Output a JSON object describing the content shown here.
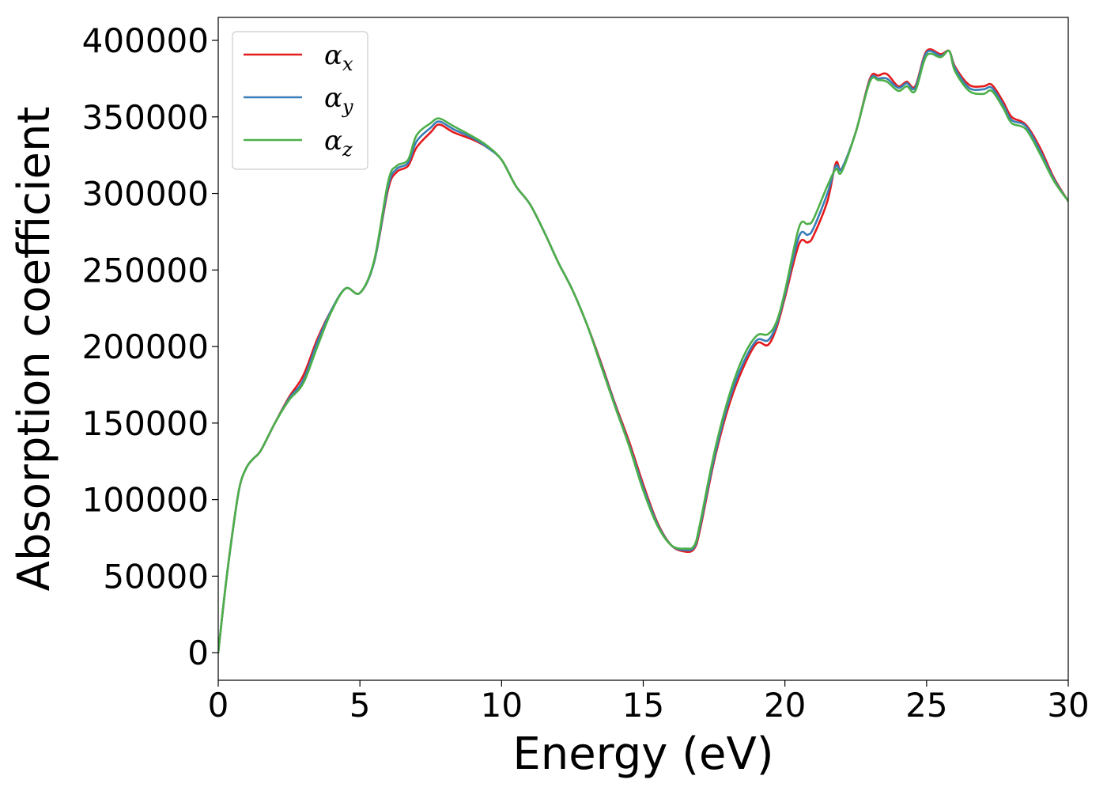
{
  "chart_data": {
    "type": "line",
    "xlabel": "Energy (eV)",
    "ylabel": "Absorption coefficient",
    "xlim": [
      0,
      30
    ],
    "ylim": [
      -18000,
      415000
    ],
    "xticks": [
      0,
      5,
      10,
      15,
      20,
      25,
      30
    ],
    "yticks": [
      0,
      50000,
      100000,
      150000,
      200000,
      250000,
      300000,
      350000,
      400000
    ],
    "grid": false,
    "legend_position": "top-left",
    "series": [
      {
        "name": "α_x",
        "label_base": "α",
        "label_sub": "x",
        "color": "#e41a1c",
        "x": [
          0,
          0.25,
          0.5,
          0.75,
          1.0,
          1.25,
          1.5,
          2.0,
          2.5,
          3.0,
          3.5,
          4.0,
          4.5,
          5.0,
          5.5,
          6.0,
          6.3,
          6.7,
          7.0,
          7.5,
          7.8,
          8.3,
          9.0,
          9.5,
          10.0,
          10.5,
          11.0,
          11.5,
          12.0,
          12.5,
          13.0,
          13.5,
          14.0,
          14.5,
          15.0,
          15.5,
          16.0,
          16.5,
          16.8,
          17.0,
          17.5,
          18.0,
          18.5,
          19.0,
          19.4,
          19.7,
          20.0,
          20.5,
          20.8,
          21.0,
          21.5,
          21.8,
          22.0,
          22.5,
          23.0,
          23.3,
          23.6,
          24.0,
          24.3,
          24.6,
          25.0,
          25.5,
          25.8,
          26.0,
          26.5,
          27.0,
          27.3,
          27.7,
          28.0,
          28.5,
          29.0,
          29.5,
          30.0
        ],
        "y": [
          0,
          42000,
          78000,
          108000,
          121000,
          127000,
          132000,
          150000,
          167000,
          181000,
          205000,
          224000,
          238000,
          235000,
          255000,
          303000,
          314000,
          318000,
          330000,
          340000,
          345000,
          340000,
          335000,
          330000,
          322000,
          305000,
          293000,
          275000,
          255000,
          237000,
          215000,
          190000,
          163000,
          138000,
          110000,
          85000,
          70000,
          66000,
          68000,
          80000,
          125000,
          160000,
          185000,
          202000,
          201000,
          212000,
          232000,
          267000,
          268000,
          272000,
          295000,
          320000,
          316000,
          340000,
          375000,
          377000,
          378000,
          370000,
          373000,
          370000,
          393000,
          391000,
          393000,
          383000,
          371000,
          370000,
          371000,
          360000,
          350000,
          345000,
          330000,
          310000,
          295000
        ]
      },
      {
        "name": "α_y",
        "label_base": "α",
        "label_sub": "y",
        "color": "#377eb8",
        "x": [
          0,
          0.25,
          0.5,
          0.75,
          1.0,
          1.25,
          1.5,
          2.0,
          2.5,
          3.0,
          3.5,
          4.0,
          4.5,
          5.0,
          5.5,
          6.0,
          6.3,
          6.7,
          7.0,
          7.5,
          7.8,
          8.3,
          9.0,
          9.5,
          10.0,
          10.5,
          11.0,
          11.5,
          12.0,
          12.5,
          13.0,
          13.5,
          14.0,
          14.5,
          15.0,
          15.5,
          16.0,
          16.5,
          16.8,
          17.0,
          17.5,
          18.0,
          18.5,
          19.0,
          19.4,
          19.7,
          20.0,
          20.5,
          20.8,
          21.0,
          21.5,
          21.8,
          22.0,
          22.5,
          23.0,
          23.3,
          23.6,
          24.0,
          24.3,
          24.6,
          25.0,
          25.5,
          25.8,
          26.0,
          26.5,
          27.0,
          27.3,
          27.7,
          28.0,
          28.5,
          29.0,
          29.5,
          30.0
        ],
        "y": [
          0,
          42000,
          78000,
          108000,
          121000,
          127000,
          132000,
          150000,
          166000,
          178000,
          203000,
          224000,
          238000,
          235000,
          255000,
          305000,
          316000,
          320000,
          334000,
          343000,
          347000,
          342000,
          336000,
          330000,
          322000,
          305000,
          293000,
          275000,
          255000,
          237000,
          215000,
          189000,
          162000,
          136000,
          108000,
          84000,
          70000,
          67000,
          69000,
          82000,
          127000,
          163000,
          188000,
          204000,
          204000,
          214000,
          234000,
          272000,
          273000,
          277000,
          300000,
          318000,
          316000,
          340000,
          374000,
          375000,
          375000,
          369000,
          372000,
          369000,
          392000,
          390000,
          393000,
          382000,
          369000,
          368000,
          369000,
          358000,
          348000,
          344000,
          328000,
          309000,
          295000
        ]
      },
      {
        "name": "α_z",
        "label_base": "α",
        "label_sub": "z",
        "color": "#4daf4a",
        "x": [
          0,
          0.25,
          0.5,
          0.75,
          1.0,
          1.25,
          1.5,
          2.0,
          2.5,
          3.0,
          3.5,
          4.0,
          4.5,
          5.0,
          5.5,
          6.0,
          6.3,
          6.7,
          7.0,
          7.5,
          7.8,
          8.3,
          9.0,
          9.5,
          10.0,
          10.5,
          11.0,
          11.5,
          12.0,
          12.5,
          13.0,
          13.5,
          14.0,
          14.5,
          15.0,
          15.5,
          16.0,
          16.5,
          16.8,
          17.0,
          17.5,
          18.0,
          18.5,
          19.0,
          19.4,
          19.7,
          20.0,
          20.5,
          20.8,
          21.0,
          21.5,
          21.8,
          22.0,
          22.5,
          23.0,
          23.3,
          23.6,
          24.0,
          24.3,
          24.6,
          25.0,
          25.5,
          25.8,
          26.0,
          26.5,
          27.0,
          27.3,
          27.7,
          28.0,
          28.5,
          29.0,
          29.5,
          30.0
        ],
        "y": [
          0,
          42000,
          78000,
          108000,
          121000,
          127000,
          132000,
          150000,
          165000,
          176000,
          200000,
          223000,
          238000,
          235000,
          256000,
          308000,
          318000,
          322000,
          338000,
          346000,
          349000,
          344000,
          337000,
          331000,
          322000,
          305000,
          293000,
          275000,
          255000,
          237000,
          215000,
          188000,
          161000,
          135000,
          106000,
          83000,
          70000,
          68000,
          70000,
          84000,
          130000,
          166000,
          192000,
          207000,
          208000,
          216000,
          236000,
          278000,
          280000,
          283000,
          305000,
          316000,
          314000,
          340000,
          373000,
          374000,
          373000,
          367000,
          370000,
          367000,
          390000,
          389000,
          393000,
          380000,
          367000,
          365000,
          367000,
          356000,
          346000,
          342000,
          326000,
          308000,
          295000
        ]
      }
    ]
  }
}
